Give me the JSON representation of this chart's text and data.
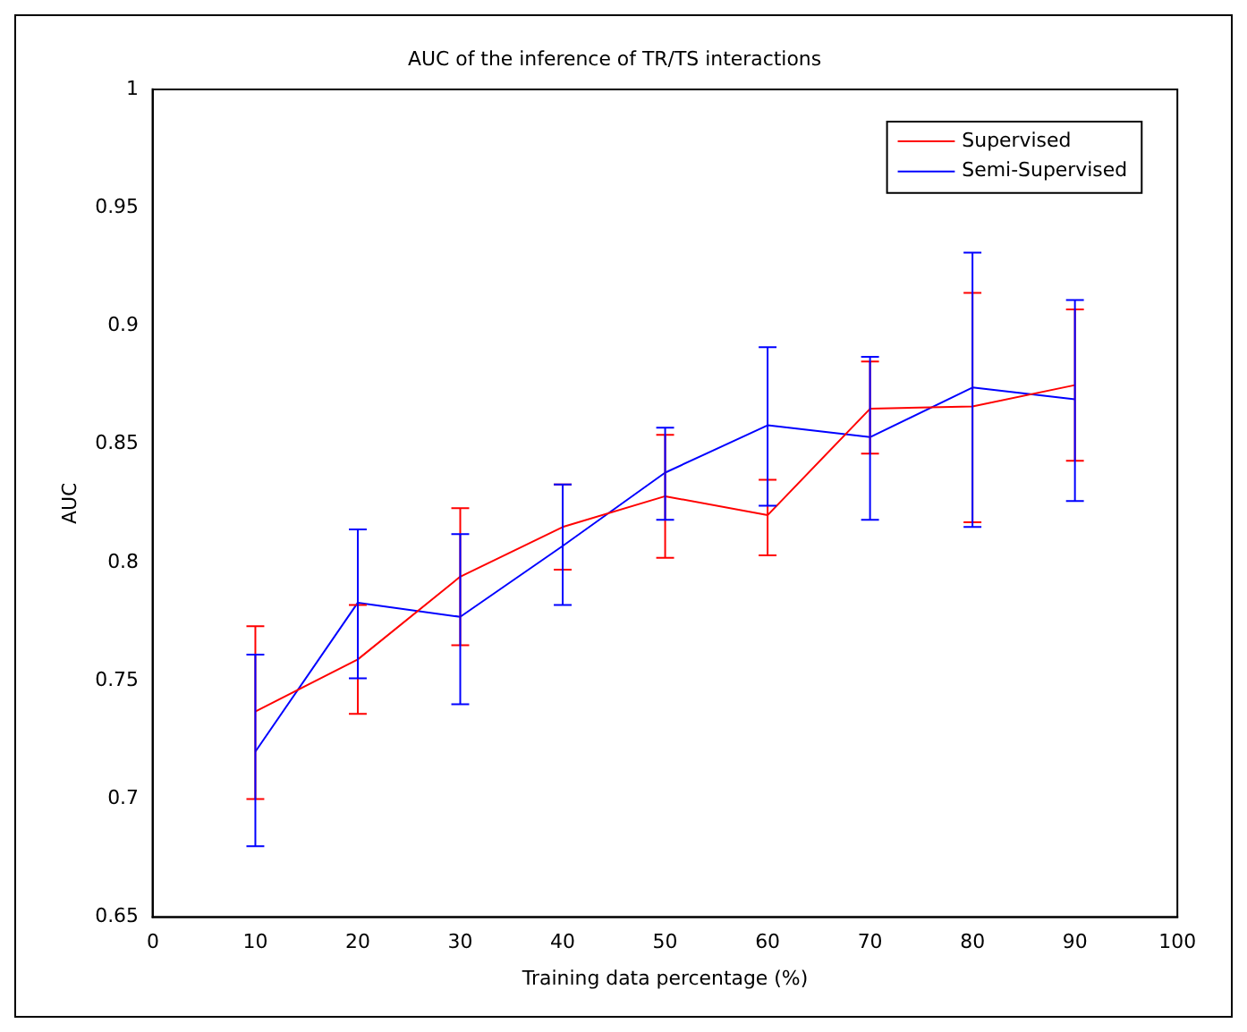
{
  "chart_data": {
    "type": "line",
    "title": "AUC of the inference of TR/TS interactions",
    "xlabel": "Training data percentage (%)",
    "ylabel": "AUC",
    "x": [
      10,
      20,
      30,
      40,
      50,
      60,
      70,
      80,
      90
    ],
    "series": [
      {
        "name": "Supervised",
        "color": "#ff0000",
        "values": [
          0.737,
          0.759,
          0.794,
          0.815,
          0.828,
          0.82,
          0.865,
          0.866,
          0.875
        ],
        "errors": [
          [
            0.7,
            0.773
          ],
          [
            0.736,
            0.782
          ],
          [
            0.765,
            0.823
          ],
          [
            0.797,
            0.833
          ],
          [
            0.802,
            0.854
          ],
          [
            0.803,
            0.835
          ],
          [
            0.846,
            0.885
          ],
          [
            0.817,
            0.914
          ],
          [
            0.843,
            0.907
          ]
        ]
      },
      {
        "name": "Semi-Supervised",
        "color": "#0000ff",
        "values": [
          0.72,
          0.783,
          0.777,
          0.807,
          0.838,
          0.858,
          0.853,
          0.874,
          0.869
        ],
        "errors": [
          [
            0.68,
            0.761
          ],
          [
            0.751,
            0.814
          ],
          [
            0.74,
            0.812
          ],
          [
            0.782,
            0.833
          ],
          [
            0.818,
            0.857
          ],
          [
            0.824,
            0.891
          ],
          [
            0.818,
            0.887
          ],
          [
            0.815,
            0.931
          ],
          [
            0.826,
            0.911
          ]
        ]
      }
    ],
    "xlim": [
      0,
      100
    ],
    "xticks": [
      0,
      10,
      20,
      30,
      40,
      50,
      60,
      70,
      80,
      90,
      100
    ],
    "ylim": [
      0.65,
      1
    ],
    "yticks": [
      0.65,
      0.7,
      0.75,
      0.8,
      0.85,
      0.9,
      0.95,
      1
    ],
    "grid": false,
    "legend": "top right",
    "marker": "none",
    "line_style": "solid"
  }
}
